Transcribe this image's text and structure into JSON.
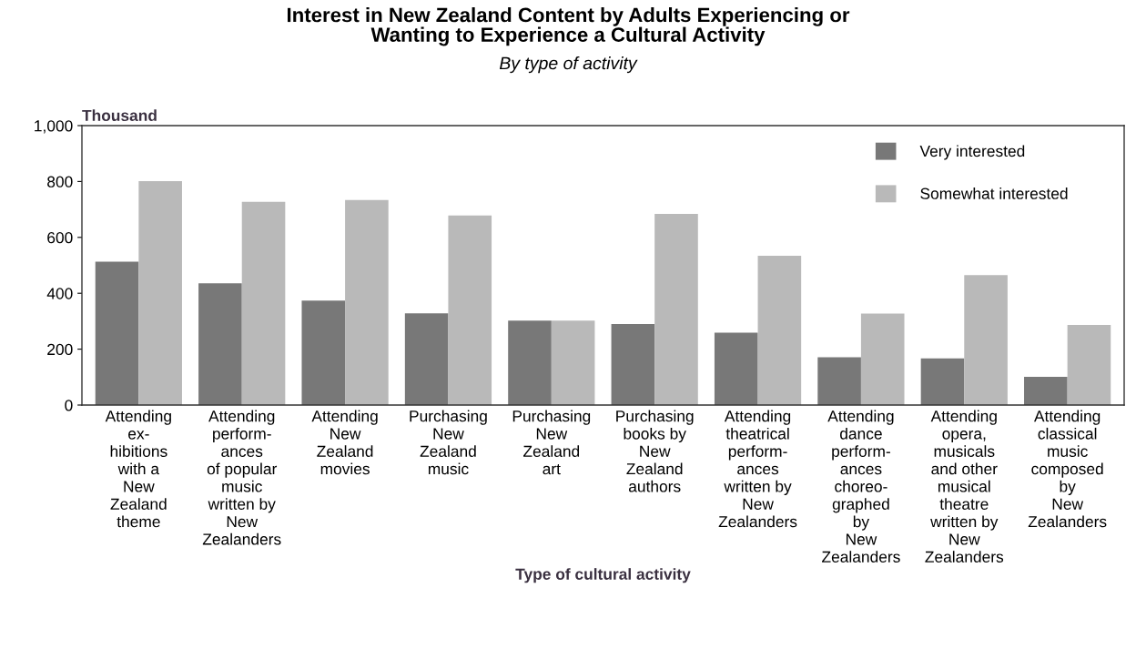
{
  "chart_data": {
    "type": "bar",
    "title": "Interest in New Zealand Content by Adults Experiencing or\nWanting to Experience a Cultural Activity",
    "subtitle": "By type of activity",
    "xlabel": "Type of cultural activity",
    "ylabel": "Thousand",
    "categories": [
      "Attending\nex-\nhibitions\nwith a\nNew\nZealand\ntheme",
      "Attending\nperform-\nances\nof popular\nmusic\nwritten by\nNew\nZealanders",
      "Attending\nNew\nZealand\nmovies",
      "Purchasing\nNew\nZealand\nmusic",
      "Purchasing\nNew\nZealand\nart",
      "Purchasing\nbooks by\nNew\nZealand\nauthors",
      "Attending\ntheatrical\nperform-\nances\nwritten by\nNew\nZealanders",
      "Attending\ndance\nperform-\nances\nchoreo-\ngraphed\nby\nNew\nZealanders",
      "Attending\nopera,\nmusicals\nand other\nmusical\ntheatre\nwritten by\nNew\nZealanders",
      "Attending\nclassical\nmusic\ncomposed\nby\nNew\nZealanders"
    ],
    "series": [
      {
        "name": "Very interested",
        "color": "#787878",
        "values": [
          513,
          436,
          374,
          328,
          302,
          290,
          259,
          171,
          167,
          101
        ]
      },
      {
        "name": "Somewhat interested",
        "color": "#b9b9b9",
        "values": [
          801,
          727,
          734,
          678,
          302,
          684,
          534,
          327,
          465,
          287
        ]
      }
    ],
    "ylim": [
      0,
      1000
    ],
    "yticks": [
      0,
      200,
      400,
      600,
      800,
      {
        "value": 1000,
        "label": "1,000"
      }
    ],
    "grid": false,
    "legend": "top right"
  }
}
